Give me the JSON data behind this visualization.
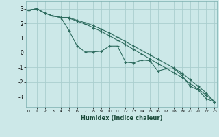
{
  "xlabel": "Humidex (Indice chaleur)",
  "bg_color": "#cce8e8",
  "grid_color": "#aacece",
  "line_color": "#2d6b5e",
  "xlim": [
    -0.3,
    23.3
  ],
  "ylim": [
    -3.7,
    3.5
  ],
  "yticks": [
    -3,
    -2,
    -1,
    0,
    1,
    2,
    3
  ],
  "xticks": [
    0,
    1,
    2,
    3,
    4,
    5,
    6,
    7,
    8,
    9,
    10,
    11,
    12,
    13,
    14,
    15,
    16,
    17,
    18,
    19,
    20,
    21,
    22,
    23
  ],
  "line1_x": [
    0,
    1,
    2,
    3,
    4,
    5,
    6,
    7,
    8,
    9,
    10,
    11,
    12,
    13,
    14,
    15,
    16,
    17,
    18,
    19,
    20,
    21,
    22,
    23
  ],
  "line1_y": [
    2.9,
    3.0,
    2.7,
    2.5,
    2.4,
    1.5,
    0.45,
    0.05,
    0.05,
    0.1,
    0.45,
    0.45,
    -0.65,
    -0.7,
    -0.5,
    -0.55,
    -1.25,
    -1.1,
    -1.1,
    -1.55,
    -2.3,
    -2.55,
    -3.15,
    -3.35
  ],
  "line2_x": [
    0,
    1,
    2,
    3,
    4,
    5,
    6,
    7,
    8,
    9,
    10,
    11,
    12,
    13,
    14,
    15,
    16,
    17,
    18,
    19,
    20,
    21,
    22,
    23
  ],
  "line2_y": [
    2.9,
    3.0,
    2.7,
    2.5,
    2.4,
    2.4,
    2.2,
    2.05,
    1.85,
    1.6,
    1.35,
    1.05,
    0.75,
    0.45,
    0.15,
    -0.15,
    -0.45,
    -0.75,
    -1.05,
    -1.4,
    -1.85,
    -2.3,
    -2.75,
    -3.35
  ],
  "line3_x": [
    0,
    1,
    2,
    3,
    4,
    5,
    6,
    7,
    8,
    9,
    10,
    11,
    12,
    13,
    14,
    15,
    16,
    17,
    18,
    19,
    20,
    21,
    22,
    23
  ],
  "line3_y": [
    2.9,
    3.0,
    2.7,
    2.5,
    2.4,
    2.35,
    2.15,
    1.95,
    1.7,
    1.45,
    1.15,
    0.85,
    0.55,
    0.22,
    -0.1,
    -0.42,
    -0.75,
    -1.05,
    -1.38,
    -1.7,
    -2.1,
    -2.5,
    -2.9,
    -3.35
  ]
}
